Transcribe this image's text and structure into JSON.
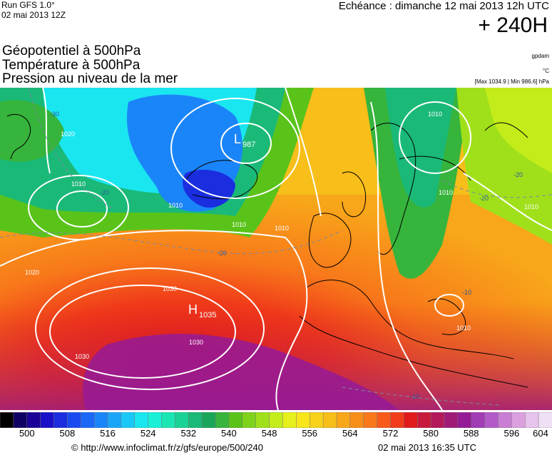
{
  "header": {
    "run_label": "Run GFS 1.0°",
    "run_date": "02 mai 2013 12Z",
    "echeance": "Echéance : dimanche 12 mai 2013 12h UTC",
    "lead_time": "+ 240H"
  },
  "variables": {
    "geopotential": "Géopotentiel à 500hPa",
    "temperature": "Température à 500hPa",
    "pressure": "Pression au niveau de la mer"
  },
  "units": {
    "geopotential_unit": "gpdam",
    "temperature_unit": "°C",
    "pressure_range": "[Max 1034.9 | Min 986.6] hPa"
  },
  "map": {
    "high_label": "H",
    "high_value": "1035",
    "low_label": "L",
    "low_value": "987",
    "isobar_labels": [
      "1020",
      "1010",
      "1010",
      "1010",
      "1010",
      "1030",
      "1030",
      "1030",
      "1020",
      "1010",
      "1010",
      "1010",
      "1010"
    ],
    "temperature_labels": [
      "-30",
      "-20",
      "-20",
      "-20",
      "-20",
      "-10",
      "-10"
    ]
  },
  "colorbar": {
    "colors": [
      "#000000",
      "#0f0063",
      "#1a0096",
      "#1a12c8",
      "#1a2ee0",
      "#1a4bf0",
      "#1a67f8",
      "#1a85f8",
      "#1aa6f8",
      "#1ac8f8",
      "#1ae6f0",
      "#1af0d6",
      "#1ae6b4",
      "#1ad296",
      "#1ab978",
      "#1aa65a",
      "#36b43c",
      "#5ac31a",
      "#7ed21a",
      "#a0e01a",
      "#c3ec1a",
      "#e6f01a",
      "#f8e61a",
      "#f8d21a",
      "#f8be1a",
      "#f8a61a",
      "#f88e1a",
      "#f8781a",
      "#f85a1a",
      "#f03c1a",
      "#e01a1a",
      "#c81a3c",
      "#b41a5a",
      "#a01a78",
      "#961a96",
      "#a03cb4",
      "#b45ac8",
      "#c87ed2",
      "#dca0e0",
      "#e6c3ec",
      "#f0e0f6"
    ],
    "labels": [
      "500",
      "508",
      "516",
      "524",
      "532",
      "540",
      "548",
      "556",
      "564",
      "572",
      "580",
      "588",
      "596",
      "604"
    ]
  },
  "footer": {
    "credit": "© http://www.infoclimat.fr/z/gfs/europe/500/240",
    "timestamp": "02 mai 2013 16:35 UTC"
  }
}
